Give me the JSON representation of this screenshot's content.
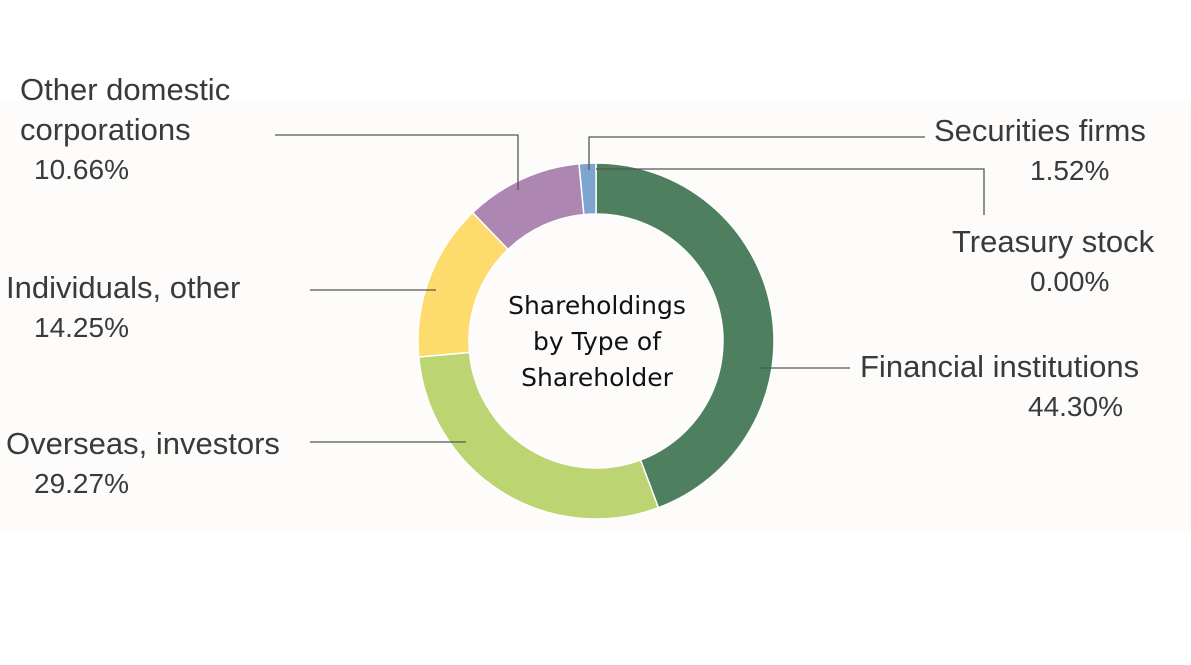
{
  "chart_data": {
    "type": "pie",
    "variant": "donut",
    "title": "Shareholdings by Type of Shareholder",
    "unit": "%",
    "slices": [
      {
        "name": "Financial institutions",
        "value": 44.3,
        "value_label": "44.30%",
        "color": "#4e8060"
      },
      {
        "name": "Overseas, investors",
        "value": 29.27,
        "value_label": "29.27%",
        "color": "#bcd572"
      },
      {
        "name": "Individuals, other",
        "value": 14.25,
        "value_label": "14.25%",
        "color": "#fddb6d"
      },
      {
        "name": "Other domestic corporations",
        "value": 10.66,
        "value_label": "10.66%",
        "color": "#ad86b2"
      },
      {
        "name": "Securities firms",
        "value": 1.52,
        "value_label": "1.52%",
        "color": "#7ca5cf"
      },
      {
        "name": "Treasury stock",
        "value": 0.0,
        "value_label": "0.00%",
        "color": "#b0b0b0"
      }
    ]
  },
  "labels": {
    "financial": {
      "name": "Financial institutions",
      "pct": "44.30%"
    },
    "overseas": {
      "name": "Overseas, investors",
      "pct": "29.27%"
    },
    "individuals": {
      "name": "Individuals, other",
      "pct": "14.25%"
    },
    "other_domestic": {
      "name_line1": "Other domestic",
      "name_line2": "corporations",
      "pct": "10.66%"
    },
    "securities": {
      "name": "Securities firms",
      "pct": "1.52%"
    },
    "treasury": {
      "name": "Treasury stock",
      "pct": "0.00%"
    }
  },
  "center": {
    "line1": "Shareholdings",
    "line2": "by Type of",
    "line3": "Shareholder"
  }
}
